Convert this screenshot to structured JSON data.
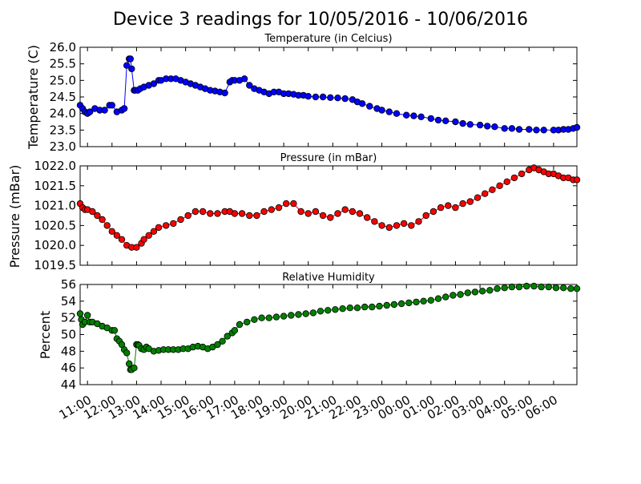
{
  "figure_title": "Device 3 readings for 10/05/2016 - 10/06/2016",
  "x_axis": {
    "ticks": [
      {
        "t": 11,
        "label": "11:00"
      },
      {
        "t": 12,
        "label": "12:00"
      },
      {
        "t": 13,
        "label": "13:00"
      },
      {
        "t": 14,
        "label": "14:00"
      },
      {
        "t": 15,
        "label": "15:00"
      },
      {
        "t": 16,
        "label": "16:00"
      },
      {
        "t": 17,
        "label": "17:00"
      },
      {
        "t": 18,
        "label": "18:00"
      },
      {
        "t": 19,
        "label": "19:00"
      },
      {
        "t": 20,
        "label": "20:00"
      },
      {
        "t": 21,
        "label": "21:00"
      },
      {
        "t": 22,
        "label": "22:00"
      },
      {
        "t": 23,
        "label": "23:00"
      },
      {
        "t": 24,
        "label": "00:00"
      },
      {
        "t": 25,
        "label": "01:00"
      },
      {
        "t": 26,
        "label": "02:00"
      },
      {
        "t": 27,
        "label": "03:00"
      },
      {
        "t": 28,
        "label": "04:00"
      },
      {
        "t": 29,
        "label": "05:00"
      },
      {
        "t": 30,
        "label": "06:00"
      }
    ],
    "xlim": [
      10.7,
      30.95
    ]
  },
  "chart_data": [
    {
      "type": "line",
      "title": "Temperature (in Celcius)",
      "ylabel": "Temperature (C)",
      "ylim": [
        23.0,
        26.0
      ],
      "yticks": [
        "23.0",
        "23.5",
        "24.0",
        "24.5",
        "25.0",
        "25.5",
        "26.0"
      ],
      "ytick_values": [
        23.0,
        23.5,
        24.0,
        24.5,
        25.0,
        25.5,
        26.0
      ],
      "color": "#0000ff",
      "series": [
        {
          "x": [
            10.7,
            10.8,
            10.9,
            11.0,
            11.1,
            11.3,
            11.5,
            11.7,
            11.9,
            12.0,
            12.2,
            12.4,
            12.5,
            12.6,
            12.7,
            12.75,
            12.8,
            12.9,
            12.95,
            13.05,
            13.15,
            13.3,
            13.5,
            13.7,
            13.9,
            14.0,
            14.2,
            14.4,
            14.6,
            14.8,
            15.0,
            15.2,
            15.4,
            15.6,
            15.8,
            16.0,
            16.2,
            16.4,
            16.6,
            16.8,
            16.9,
            17.0,
            17.2,
            17.4,
            17.6,
            17.8,
            18.0,
            18.2,
            18.4,
            18.6,
            18.8,
            19.0,
            19.2,
            19.4,
            19.6,
            19.8,
            20.0,
            20.3,
            20.6,
            20.9,
            21.2,
            21.5,
            21.8,
            22.0,
            22.2,
            22.5,
            22.8,
            23.0,
            23.3,
            23.6,
            24.0,
            24.3,
            24.6,
            25.0,
            25.3,
            25.6,
            26.0,
            26.3,
            26.6,
            27.0,
            27.3,
            27.6,
            28.0,
            28.3,
            28.6,
            29.0,
            29.3,
            29.6,
            30.0,
            30.2,
            30.4,
            30.6,
            30.8,
            30.95
          ],
          "y": [
            24.25,
            24.15,
            24.05,
            24.0,
            24.05,
            24.15,
            24.1,
            24.1,
            24.25,
            24.25,
            24.05,
            24.1,
            24.15,
            25.45,
            25.65,
            25.65,
            25.35,
            24.7,
            24.7,
            24.7,
            24.75,
            24.8,
            24.85,
            24.9,
            25.0,
            25.0,
            25.05,
            25.05,
            25.05,
            25.0,
            24.95,
            24.9,
            24.85,
            24.8,
            24.75,
            24.7,
            24.68,
            24.65,
            24.62,
            24.95,
            25.0,
            25.0,
            25.0,
            25.05,
            24.85,
            24.75,
            24.7,
            24.65,
            24.6,
            24.65,
            24.65,
            24.6,
            24.6,
            24.58,
            24.55,
            24.55,
            24.52,
            24.5,
            24.5,
            24.48,
            24.47,
            24.45,
            24.42,
            24.35,
            24.3,
            24.22,
            24.15,
            24.1,
            24.05,
            24.0,
            23.95,
            23.93,
            23.9,
            23.85,
            23.8,
            23.78,
            23.75,
            23.7,
            23.67,
            23.65,
            23.62,
            23.6,
            23.55,
            23.55,
            23.52,
            23.52,
            23.5,
            23.5,
            23.5,
            23.5,
            23.52,
            23.52,
            23.55,
            23.58
          ]
        }
      ]
    },
    {
      "type": "line",
      "title": "Pressure (in mBar)",
      "ylabel": "Pressure (mBar)",
      "ylim": [
        1019.5,
        1022.0
      ],
      "yticks": [
        "1019.5",
        "1020.0",
        "1020.5",
        "1021.0",
        "1021.5",
        "1022.0"
      ],
      "ytick_values": [
        1019.5,
        1020.0,
        1020.5,
        1021.0,
        1021.5,
        1022.0
      ],
      "color": "#ff0000",
      "series": [
        {
          "x": [
            10.7,
            10.8,
            10.9,
            11.0,
            11.2,
            11.4,
            11.6,
            11.8,
            12.0,
            12.2,
            12.4,
            12.6,
            12.8,
            13.0,
            13.2,
            13.3,
            13.5,
            13.7,
            13.9,
            14.2,
            14.5,
            14.8,
            15.1,
            15.4,
            15.7,
            16.0,
            16.3,
            16.6,
            16.8,
            17.0,
            17.3,
            17.6,
            17.9,
            18.2,
            18.5,
            18.8,
            19.1,
            19.4,
            19.7,
            20.0,
            20.3,
            20.6,
            20.9,
            21.2,
            21.5,
            21.8,
            22.1,
            22.4,
            22.7,
            23.0,
            23.3,
            23.6,
            23.9,
            24.2,
            24.5,
            24.8,
            25.1,
            25.4,
            25.7,
            26.0,
            26.3,
            26.6,
            26.9,
            27.2,
            27.5,
            27.8,
            28.1,
            28.4,
            28.7,
            29.0,
            29.2,
            29.4,
            29.6,
            29.8,
            30.0,
            30.2,
            30.4,
            30.6,
            30.8,
            30.95
          ],
          "y": [
            1021.05,
            1020.95,
            1020.9,
            1020.9,
            1020.85,
            1020.75,
            1020.65,
            1020.5,
            1020.35,
            1020.25,
            1020.15,
            1020.0,
            1019.95,
            1019.95,
            1020.05,
            1020.15,
            1020.25,
            1020.35,
            1020.45,
            1020.5,
            1020.55,
            1020.65,
            1020.75,
            1020.85,
            1020.85,
            1020.8,
            1020.8,
            1020.85,
            1020.85,
            1020.8,
            1020.8,
            1020.75,
            1020.75,
            1020.85,
            1020.9,
            1020.95,
            1021.05,
            1021.05,
            1020.85,
            1020.8,
            1020.85,
            1020.75,
            1020.7,
            1020.8,
            1020.9,
            1020.85,
            1020.8,
            1020.7,
            1020.6,
            1020.5,
            1020.45,
            1020.5,
            1020.55,
            1020.5,
            1020.6,
            1020.75,
            1020.85,
            1020.95,
            1021.0,
            1020.95,
            1021.05,
            1021.1,
            1021.2,
            1021.3,
            1021.4,
            1021.5,
            1021.6,
            1021.7,
            1021.8,
            1021.9,
            1021.95,
            1021.9,
            1021.85,
            1021.8,
            1021.8,
            1021.75,
            1021.7,
            1021.7,
            1021.65,
            1021.65
          ]
        }
      ]
    },
    {
      "type": "line",
      "title": "Relative Humidity",
      "ylabel": "Percent",
      "ylim": [
        44,
        56
      ],
      "yticks": [
        "44",
        "46",
        "48",
        "50",
        "52",
        "54",
        "56"
      ],
      "ytick_values": [
        44,
        46,
        48,
        50,
        52,
        54,
        56
      ],
      "color": "#008000",
      "series": [
        {
          "x": [
            10.7,
            10.75,
            10.8,
            10.9,
            11.0,
            11.1,
            11.2,
            11.4,
            11.6,
            11.8,
            12.0,
            12.1,
            12.2,
            12.3,
            12.4,
            12.5,
            12.6,
            12.7,
            12.75,
            12.8,
            12.9,
            13.0,
            13.05,
            13.1,
            13.2,
            13.3,
            13.4,
            13.5,
            13.7,
            13.9,
            14.1,
            14.3,
            14.5,
            14.7,
            14.9,
            15.1,
            15.3,
            15.5,
            15.7,
            15.9,
            16.1,
            16.3,
            16.5,
            16.7,
            16.9,
            17.0,
            17.2,
            17.5,
            17.8,
            18.1,
            18.4,
            18.7,
            19.0,
            19.3,
            19.6,
            19.9,
            20.2,
            20.5,
            20.8,
            21.1,
            21.4,
            21.7,
            22.0,
            22.3,
            22.6,
            22.9,
            23.2,
            23.5,
            23.8,
            24.1,
            24.4,
            24.7,
            25.0,
            25.3,
            25.6,
            25.9,
            26.2,
            26.5,
            26.8,
            27.1,
            27.4,
            27.7,
            28.0,
            28.3,
            28.6,
            28.9,
            29.2,
            29.5,
            29.8,
            30.1,
            30.4,
            30.7,
            30.95
          ],
          "y": [
            52.5,
            51.8,
            51.2,
            51.5,
            52.3,
            51.5,
            51.5,
            51.3,
            51.0,
            50.8,
            50.5,
            50.5,
            49.5,
            49.2,
            48.8,
            48.2,
            47.8,
            46.5,
            45.8,
            45.8,
            46.0,
            48.8,
            48.8,
            48.7,
            48.3,
            48.2,
            48.5,
            48.3,
            48.0,
            48.1,
            48.2,
            48.2,
            48.2,
            48.2,
            48.3,
            48.3,
            48.5,
            48.6,
            48.5,
            48.3,
            48.5,
            48.8,
            49.2,
            49.8,
            50.2,
            50.5,
            51.2,
            51.5,
            51.8,
            52.0,
            52.0,
            52.1,
            52.2,
            52.3,
            52.4,
            52.5,
            52.6,
            52.8,
            52.9,
            53.0,
            53.1,
            53.2,
            53.2,
            53.3,
            53.3,
            53.4,
            53.5,
            53.6,
            53.7,
            53.8,
            53.9,
            54.0,
            54.1,
            54.3,
            54.5,
            54.7,
            54.8,
            55.0,
            55.1,
            55.2,
            55.3,
            55.5,
            55.6,
            55.7,
            55.7,
            55.8,
            55.8,
            55.7,
            55.7,
            55.6,
            55.6,
            55.5,
            55.5
          ]
        }
      ]
    }
  ]
}
